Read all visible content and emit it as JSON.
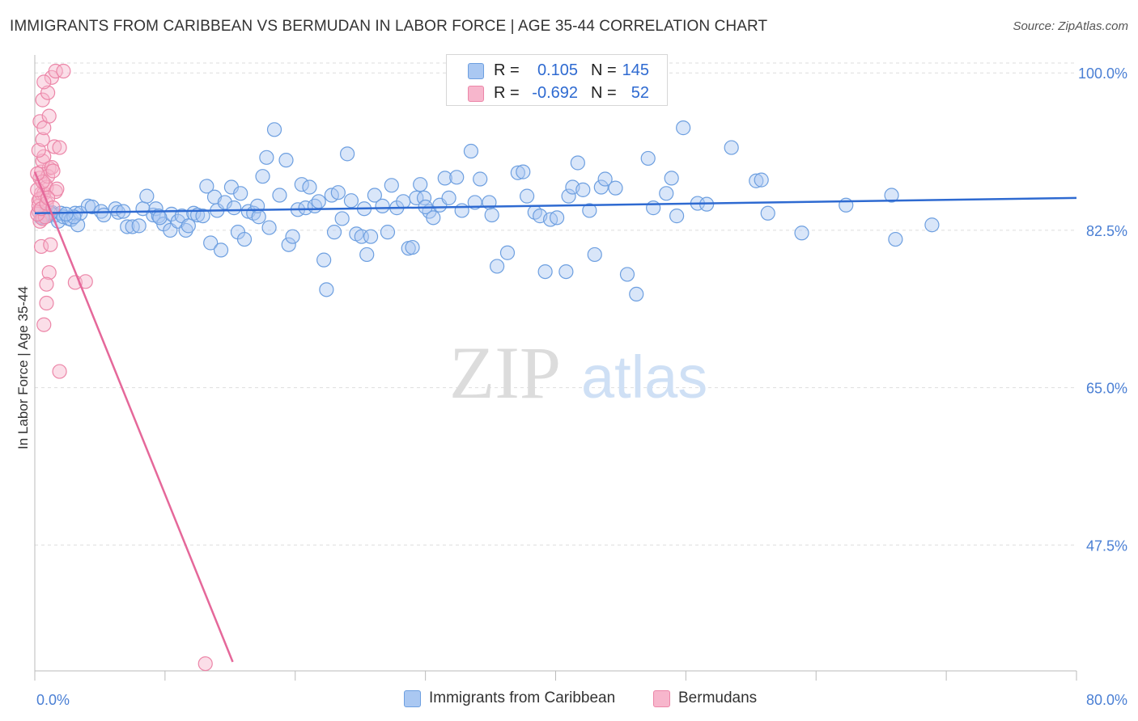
{
  "title": "IMMIGRANTS FROM CARIBBEAN VS BERMUDAN IN LABOR FORCE | AGE 35-44 CORRELATION CHART",
  "source": "Source: ZipAtlas.com",
  "watermark": {
    "zip": "ZIP",
    "atlas": "atlas"
  },
  "colors": {
    "blue_fill": "#aac8f2",
    "blue_stroke": "#6d9fe0",
    "blue_line": "#2e6ad1",
    "pink_fill": "#f7b6cc",
    "pink_stroke": "#ec86a8",
    "pink_line": "#e5689a",
    "tick_text": "#4a7fd4",
    "grid": "#dddddd"
  },
  "legend": {
    "rows": [
      {
        "r_label": "R =",
        "r_value": "0.105",
        "n_label": "N =",
        "n_value": "145"
      },
      {
        "r_label": "R =",
        "r_value": "-0.692",
        "n_label": "N =",
        "n_value": "52"
      }
    ]
  },
  "bottom_legend": {
    "series1": "Immigrants from Caribbean",
    "series2": "Bermudans"
  },
  "chart_data": {
    "type": "scatter",
    "title": "IMMIGRANTS FROM CARIBBEAN VS BERMUDAN IN LABOR FORCE | AGE 35-44 CORRELATION CHART",
    "xlabel": "",
    "ylabel": "In Labor Force | Age 35-44",
    "xlim": [
      0,
      80
    ],
    "ylim": [
      33.5,
      102
    ],
    "x_tick_labels": [
      "0.0%",
      "80.0%"
    ],
    "y_ticks": [
      100.0,
      82.5,
      65.0,
      47.5
    ],
    "y_tick_labels": [
      "100.0%",
      "82.5%",
      "65.0%",
      "47.5%"
    ],
    "grid": true,
    "series": [
      {
        "name": "Immigrants from Caribbean",
        "r": 0.105,
        "n": 145,
        "trend": {
          "x": [
            0,
            80
          ],
          "y": [
            84.4,
            86.1
          ]
        },
        "points": [
          [
            0.3,
            84.6
          ],
          [
            0.5,
            83.9
          ],
          [
            0.8,
            84.3
          ],
          [
            1.0,
            84.1
          ],
          [
            1.3,
            84.5
          ],
          [
            1.6,
            84.2
          ],
          [
            1.8,
            83.5
          ],
          [
            2.0,
            84.4
          ],
          [
            2.2,
            84.0
          ],
          [
            2.6,
            83.8
          ],
          [
            2.8,
            83.7
          ],
          [
            3.1,
            84.4
          ],
          [
            3.3,
            83.1
          ],
          [
            3.5,
            84.4
          ],
          [
            4.1,
            85.2
          ],
          [
            4.4,
            85.1
          ],
          [
            5.1,
            84.6
          ],
          [
            5.3,
            84.2
          ],
          [
            6.2,
            84.9
          ],
          [
            6.4,
            84.5
          ],
          [
            7.1,
            82.9
          ],
          [
            7.5,
            82.9
          ],
          [
            8.0,
            83.0
          ],
          [
            8.3,
            84.9
          ],
          [
            8.6,
            86.3
          ],
          [
            9.1,
            84.2
          ],
          [
            9.3,
            84.9
          ],
          [
            9.5,
            84.1
          ],
          [
            9.9,
            83.2
          ],
          [
            10.4,
            82.5
          ],
          [
            10.5,
            84.3
          ],
          [
            11.0,
            83.5
          ],
          [
            11.3,
            84.1
          ],
          [
            11.6,
            82.5
          ],
          [
            11.8,
            83.0
          ],
          [
            12.2,
            84.4
          ],
          [
            12.5,
            84.2
          ],
          [
            13.2,
            87.4
          ],
          [
            13.5,
            81.1
          ],
          [
            13.8,
            86.2
          ],
          [
            14.0,
            84.7
          ],
          [
            14.3,
            80.3
          ],
          [
            14.6,
            85.6
          ],
          [
            15.1,
            87.3
          ],
          [
            15.3,
            85.0
          ],
          [
            15.6,
            82.3
          ],
          [
            15.8,
            86.6
          ],
          [
            16.1,
            81.5
          ],
          [
            16.4,
            84.6
          ],
          [
            16.8,
            84.4
          ],
          [
            17.1,
            85.2
          ],
          [
            17.5,
            88.5
          ],
          [
            17.8,
            90.6
          ],
          [
            18.0,
            82.8
          ],
          [
            18.4,
            93.7
          ],
          [
            18.8,
            86.4
          ],
          [
            19.3,
            90.3
          ],
          [
            19.5,
            80.9
          ],
          [
            19.8,
            81.8
          ],
          [
            20.2,
            84.8
          ],
          [
            20.5,
            87.6
          ],
          [
            20.8,
            85.0
          ],
          [
            21.1,
            87.3
          ],
          [
            21.5,
            85.2
          ],
          [
            21.8,
            85.7
          ],
          [
            22.2,
            79.2
          ],
          [
            22.4,
            75.9
          ],
          [
            22.8,
            86.4
          ],
          [
            23.0,
            82.3
          ],
          [
            23.3,
            86.7
          ],
          [
            23.6,
            83.8
          ],
          [
            24.0,
            91.0
          ],
          [
            24.3,
            85.8
          ],
          [
            24.7,
            82.1
          ],
          [
            25.1,
            81.8
          ],
          [
            25.5,
            79.8
          ],
          [
            25.8,
            81.8
          ],
          [
            26.1,
            86.4
          ],
          [
            26.7,
            85.2
          ],
          [
            27.1,
            82.3
          ],
          [
            27.4,
            87.5
          ],
          [
            27.8,
            85.0
          ],
          [
            28.3,
            85.7
          ],
          [
            28.7,
            80.5
          ],
          [
            29.0,
            80.6
          ],
          [
            29.3,
            86.1
          ],
          [
            29.6,
            87.6
          ],
          [
            29.9,
            86.1
          ],
          [
            30.3,
            84.6
          ],
          [
            30.6,
            83.9
          ],
          [
            31.1,
            85.3
          ],
          [
            31.5,
            88.3
          ],
          [
            31.8,
            86.1
          ],
          [
            32.4,
            88.4
          ],
          [
            32.8,
            84.7
          ],
          [
            33.5,
            91.3
          ],
          [
            33.8,
            85.6
          ],
          [
            34.2,
            88.2
          ],
          [
            34.9,
            85.6
          ],
          [
            35.1,
            84.2
          ],
          [
            35.5,
            78.5
          ],
          [
            36.3,
            80.0
          ],
          [
            37.1,
            88.9
          ],
          [
            37.5,
            89.0
          ],
          [
            37.8,
            86.3
          ],
          [
            38.4,
            84.5
          ],
          [
            38.8,
            84.1
          ],
          [
            39.2,
            77.9
          ],
          [
            39.6,
            83.7
          ],
          [
            40.1,
            83.9
          ],
          [
            40.8,
            77.9
          ],
          [
            41.0,
            86.3
          ],
          [
            41.3,
            87.3
          ],
          [
            41.7,
            90.0
          ],
          [
            42.1,
            87.0
          ],
          [
            42.6,
            84.7
          ],
          [
            43.0,
            79.8
          ],
          [
            43.5,
            87.3
          ],
          [
            43.8,
            88.2
          ],
          [
            44.6,
            87.2
          ],
          [
            45.5,
            77.6
          ],
          [
            46.2,
            75.4
          ],
          [
            47.1,
            90.5
          ],
          [
            47.5,
            85.0
          ],
          [
            48.5,
            86.6
          ],
          [
            48.9,
            88.3
          ],
          [
            49.3,
            84.1
          ],
          [
            49.8,
            93.9
          ],
          [
            50.9,
            85.5
          ],
          [
            51.6,
            85.4
          ],
          [
            53.5,
            91.7
          ],
          [
            55.4,
            88.0
          ],
          [
            55.8,
            88.1
          ],
          [
            56.3,
            84.4
          ],
          [
            58.9,
            82.2
          ],
          [
            62.3,
            85.3
          ],
          [
            65.8,
            86.4
          ],
          [
            66.1,
            81.5
          ],
          [
            68.9,
            83.1
          ],
          [
            3.0,
            84.0
          ],
          [
            1.2,
            84.4
          ],
          [
            0.6,
            84.0
          ],
          [
            2.4,
            84.3
          ],
          [
            6.8,
            84.6
          ],
          [
            9.6,
            83.9
          ],
          [
            12.9,
            84.1
          ],
          [
            17.2,
            84.0
          ],
          [
            25.3,
            84.9
          ],
          [
            30.0,
            85.1
          ]
        ]
      },
      {
        "name": "Bermudans",
        "r": -0.692,
        "n": 52,
        "trend": {
          "x": [
            0,
            15.2
          ],
          "y": [
            89.0,
            34.5
          ]
        },
        "points": [
          [
            0.3,
            84.6
          ],
          [
            0.4,
            83.5
          ],
          [
            0.6,
            83.8
          ],
          [
            0.8,
            84.0
          ],
          [
            0.3,
            85.8
          ],
          [
            0.5,
            86.6
          ],
          [
            0.7,
            86.6
          ],
          [
            0.8,
            87.6
          ],
          [
            0.4,
            88.3
          ],
          [
            0.5,
            89.0
          ],
          [
            0.9,
            87.3
          ],
          [
            1.1,
            89.4
          ],
          [
            0.6,
            90.2
          ],
          [
            0.7,
            90.7
          ],
          [
            1.0,
            88.5
          ],
          [
            1.3,
            89.5
          ],
          [
            0.3,
            91.4
          ],
          [
            0.6,
            92.6
          ],
          [
            1.5,
            91.8
          ],
          [
            1.9,
            91.7
          ],
          [
            0.4,
            94.6
          ],
          [
            0.7,
            93.9
          ],
          [
            1.1,
            95.2
          ],
          [
            0.6,
            97.0
          ],
          [
            1.0,
            97.8
          ],
          [
            1.3,
            99.5
          ],
          [
            0.7,
            99.0
          ],
          [
            1.6,
            100.2
          ],
          [
            2.2,
            100.2
          ],
          [
            1.4,
            89.1
          ],
          [
            1.6,
            86.8
          ],
          [
            0.5,
            80.7
          ],
          [
            1.2,
            80.9
          ],
          [
            1.1,
            77.8
          ],
          [
            0.9,
            76.5
          ],
          [
            3.1,
            76.7
          ],
          [
            3.9,
            76.8
          ],
          [
            0.9,
            74.4
          ],
          [
            0.7,
            72.0
          ],
          [
            1.9,
            66.8
          ],
          [
            13.1,
            34.3
          ],
          [
            0.2,
            84.3
          ],
          [
            0.3,
            85.2
          ],
          [
            0.4,
            86.0
          ],
          [
            0.2,
            87.0
          ],
          [
            0.5,
            84.9
          ],
          [
            0.9,
            85.5
          ],
          [
            0.6,
            87.9
          ],
          [
            1.7,
            87.1
          ],
          [
            0.2,
            88.8
          ],
          [
            1.0,
            86.1
          ],
          [
            1.4,
            85.0
          ]
        ]
      }
    ]
  }
}
